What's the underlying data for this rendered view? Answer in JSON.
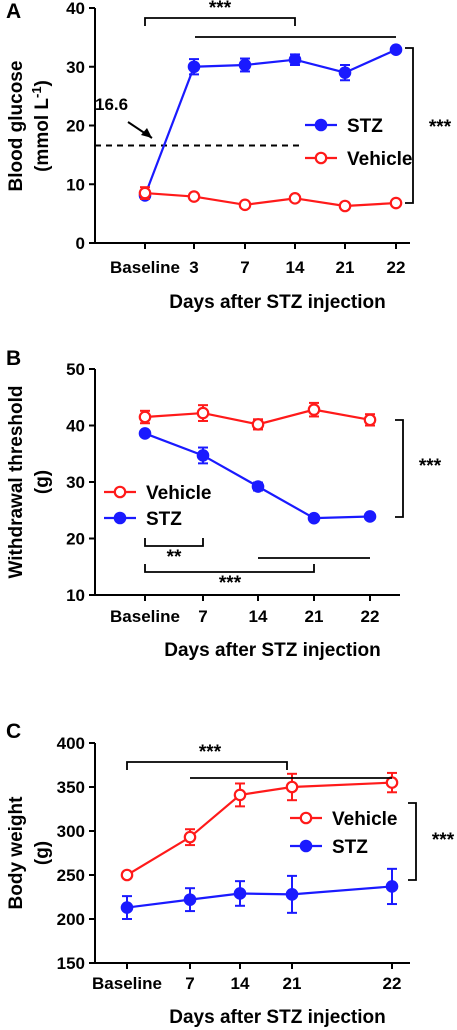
{
  "colors": {
    "stz": "#1a1aff",
    "vehicle": "#ff1a1a",
    "axis": "#000000"
  },
  "chart_data": [
    {
      "panel": "A",
      "type": "line",
      "categories": [
        "Baseline",
        "3",
        "7",
        "14",
        "21",
        "22"
      ],
      "xlabel": "Days after STZ injection",
      "ylabel": "Blood glucose",
      "ylabel_unit": "(mmol L-1)",
      "ylim": [
        0,
        40
      ],
      "yticks": [
        0,
        10,
        20,
        30,
        40
      ],
      "series": [
        {
          "name": "STZ",
          "color": "#1a1aff",
          "marker": "filled",
          "values": [
            8.1,
            30.0,
            30.3,
            31.2,
            29.0,
            32.9
          ],
          "errors": [
            0.6,
            1.3,
            1.1,
            0.9,
            1.3,
            0.4
          ]
        },
        {
          "name": "Vehicle",
          "color": "#ff1a1a",
          "marker": "open",
          "values": [
            8.5,
            7.9,
            6.5,
            7.6,
            6.3,
            6.8
          ],
          "errors": [
            1.0,
            0.5,
            0.4,
            0.4,
            0.3,
            0.4
          ]
        }
      ],
      "reference_line": {
        "y": 16.6,
        "label": "16.6"
      },
      "significance": [
        {
          "label": "***",
          "from": "Baseline",
          "to": "14",
          "type": "bracket"
        },
        {
          "label": "***",
          "from": "Baseline",
          "to": "22",
          "type": "bar"
        },
        {
          "label": "***",
          "between": [
            "STZ",
            "Vehicle"
          ],
          "type": "side-bracket"
        }
      ],
      "legend": "center-right",
      "legend_order": [
        "STZ",
        "Vehicle"
      ]
    },
    {
      "panel": "B",
      "type": "line",
      "categories": [
        "Baseline",
        "7",
        "14",
        "21",
        "22"
      ],
      "xlabel": "Days after STZ injection",
      "ylabel": "Withdrawal threshold",
      "ylabel_unit": "(g)",
      "ylim": [
        10,
        50
      ],
      "yticks": [
        10,
        20,
        30,
        40,
        50
      ],
      "series": [
        {
          "name": "Vehicle",
          "color": "#ff1a1a",
          "marker": "open",
          "values": [
            41.5,
            42.2,
            40.2,
            42.8,
            41.0
          ],
          "errors": [
            1.1,
            1.4,
            0.9,
            1.2,
            1.0
          ]
        },
        {
          "name": "STZ",
          "color": "#1a1aff",
          "marker": "filled",
          "values": [
            38.6,
            34.7,
            29.2,
            23.6,
            23.9
          ],
          "errors": [
            0.4,
            1.4,
            0.7,
            0.3,
            0.3
          ]
        }
      ],
      "significance": [
        {
          "label": "**",
          "from": "Baseline",
          "to": "7",
          "type": "bracket-below"
        },
        {
          "label": "***",
          "from": "Baseline",
          "to": "21",
          "type": "bracket-below"
        },
        {
          "label": "***",
          "from": "Baseline",
          "to": "22",
          "type": "bar-below"
        },
        {
          "label": "***",
          "between": [
            "Vehicle",
            "STZ"
          ],
          "type": "side-bracket"
        }
      ],
      "legend": "center-left",
      "legend_order": [
        "Vehicle",
        "STZ"
      ]
    },
    {
      "panel": "C",
      "type": "line",
      "categories": [
        "Baseline",
        "7",
        "14",
        "21",
        "22"
      ],
      "xlabel": "Days after STZ injection",
      "ylabel": "Body weight",
      "ylabel_unit": "(g)",
      "ylim": [
        150,
        400
      ],
      "yticks": [
        150,
        200,
        250,
        300,
        350,
        400
      ],
      "series": [
        {
          "name": "Vehicle",
          "color": "#ff1a1a",
          "marker": "open",
          "values": [
            250,
            293,
            341,
            350,
            355
          ],
          "errors": [
            2,
            9,
            13,
            15,
            11
          ]
        },
        {
          "name": "STZ",
          "color": "#1a1aff",
          "marker": "filled",
          "values": [
            213,
            222,
            229,
            228,
            237
          ],
          "errors": [
            13,
            13,
            14,
            21,
            20
          ]
        }
      ],
      "significance": [
        {
          "label": "***",
          "from": "Baseline",
          "to": "14",
          "type": "bracket"
        },
        {
          "label": "***",
          "from": "Baseline",
          "to": "22",
          "type": "bar"
        },
        {
          "label": "***",
          "between": [
            "Vehicle",
            "STZ"
          ],
          "type": "side-bracket"
        }
      ],
      "legend": "center-right",
      "legend_order": [
        "Vehicle",
        "STZ"
      ]
    }
  ]
}
